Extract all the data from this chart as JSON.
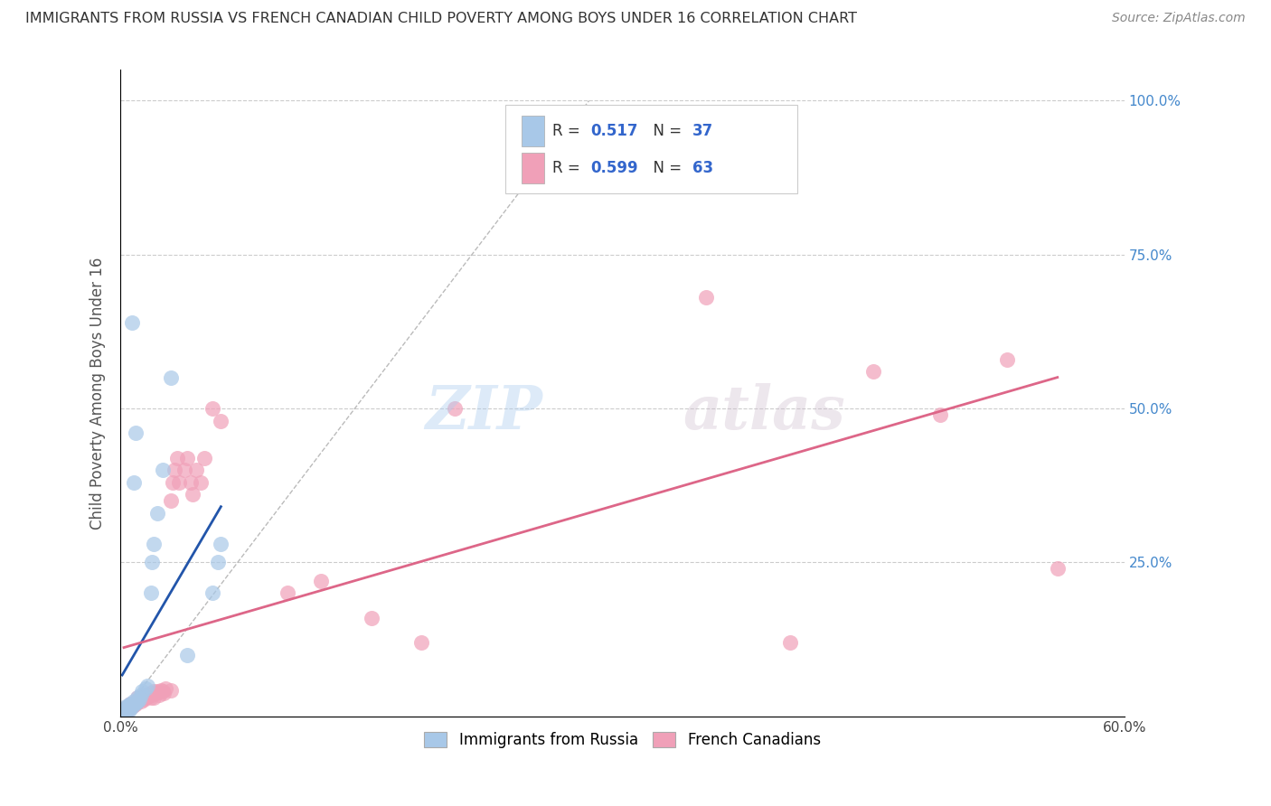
{
  "title": "IMMIGRANTS FROM RUSSIA VS FRENCH CANADIAN CHILD POVERTY AMONG BOYS UNDER 16 CORRELATION CHART",
  "source": "Source: ZipAtlas.com",
  "ylabel": "Child Poverty Among Boys Under 16",
  "xlim": [
    0.0,
    0.6
  ],
  "ylim": [
    0.0,
    1.05
  ],
  "yticks": [
    0.0,
    0.25,
    0.5,
    0.75,
    1.0
  ],
  "ytick_labels_right": [
    "",
    "25.0%",
    "50.0%",
    "75.0%",
    "100.0%"
  ],
  "xticks": [
    0.0,
    0.075,
    0.15,
    0.225,
    0.3,
    0.375,
    0.45,
    0.525,
    0.6
  ],
  "xtick_labels": [
    "0.0%",
    "",
    "",
    "",
    "",
    "",
    "",
    "",
    "60.0%"
  ],
  "legend_labels": [
    "Immigrants from Russia",
    "French Canadians"
  ],
  "R_blue": 0.517,
  "N_blue": 37,
  "R_pink": 0.599,
  "N_pink": 63,
  "blue_color": "#A8C8E8",
  "pink_color": "#F0A0B8",
  "blue_line_color": "#2255AA",
  "pink_line_color": "#DD6688",
  "blue_scatter": [
    [
      0.001,
      0.005
    ],
    [
      0.002,
      0.008
    ],
    [
      0.002,
      0.01
    ],
    [
      0.003,
      0.012
    ],
    [
      0.003,
      0.015
    ],
    [
      0.004,
      0.01
    ],
    [
      0.004,
      0.015
    ],
    [
      0.005,
      0.01
    ],
    [
      0.005,
      0.012
    ],
    [
      0.005,
      0.018
    ],
    [
      0.006,
      0.015
    ],
    [
      0.006,
      0.02
    ],
    [
      0.007,
      0.015
    ],
    [
      0.007,
      0.018
    ],
    [
      0.008,
      0.02
    ],
    [
      0.008,
      0.025
    ],
    [
      0.009,
      0.022
    ],
    [
      0.01,
      0.025
    ],
    [
      0.01,
      0.03
    ],
    [
      0.011,
      0.028
    ],
    [
      0.012,
      0.035
    ],
    [
      0.013,
      0.04
    ],
    [
      0.015,
      0.045
    ],
    [
      0.016,
      0.05
    ],
    [
      0.018,
      0.2
    ],
    [
      0.019,
      0.25
    ],
    [
      0.02,
      0.28
    ],
    [
      0.022,
      0.33
    ],
    [
      0.025,
      0.4
    ],
    [
      0.008,
      0.38
    ],
    [
      0.009,
      0.46
    ],
    [
      0.007,
      0.64
    ],
    [
      0.03,
      0.55
    ],
    [
      0.055,
      0.2
    ],
    [
      0.058,
      0.25
    ],
    [
      0.06,
      0.28
    ],
    [
      0.04,
      0.1
    ]
  ],
  "pink_scatter": [
    [
      0.002,
      0.005
    ],
    [
      0.003,
      0.008
    ],
    [
      0.003,
      0.012
    ],
    [
      0.004,
      0.01
    ],
    [
      0.004,
      0.015
    ],
    [
      0.005,
      0.012
    ],
    [
      0.005,
      0.015
    ],
    [
      0.006,
      0.018
    ],
    [
      0.006,
      0.02
    ],
    [
      0.007,
      0.015
    ],
    [
      0.007,
      0.02
    ],
    [
      0.008,
      0.018
    ],
    [
      0.008,
      0.022
    ],
    [
      0.009,
      0.02
    ],
    [
      0.01,
      0.025
    ],
    [
      0.01,
      0.03
    ],
    [
      0.011,
      0.028
    ],
    [
      0.012,
      0.025
    ],
    [
      0.012,
      0.03
    ],
    [
      0.013,
      0.032
    ],
    [
      0.014,
      0.028
    ],
    [
      0.015,
      0.03
    ],
    [
      0.015,
      0.035
    ],
    [
      0.016,
      0.032
    ],
    [
      0.017,
      0.035
    ],
    [
      0.018,
      0.03
    ],
    [
      0.018,
      0.038
    ],
    [
      0.019,
      0.035
    ],
    [
      0.02,
      0.04
    ],
    [
      0.02,
      0.03
    ],
    [
      0.021,
      0.038
    ],
    [
      0.022,
      0.04
    ],
    [
      0.023,
      0.035
    ],
    [
      0.024,
      0.042
    ],
    [
      0.025,
      0.04
    ],
    [
      0.026,
      0.038
    ],
    [
      0.027,
      0.045
    ],
    [
      0.03,
      0.042
    ],
    [
      0.03,
      0.35
    ],
    [
      0.031,
      0.38
    ],
    [
      0.032,
      0.4
    ],
    [
      0.034,
      0.42
    ],
    [
      0.035,
      0.38
    ],
    [
      0.038,
      0.4
    ],
    [
      0.04,
      0.42
    ],
    [
      0.042,
      0.38
    ],
    [
      0.043,
      0.36
    ],
    [
      0.045,
      0.4
    ],
    [
      0.048,
      0.38
    ],
    [
      0.05,
      0.42
    ],
    [
      0.055,
      0.5
    ],
    [
      0.06,
      0.48
    ],
    [
      0.1,
      0.2
    ],
    [
      0.12,
      0.22
    ],
    [
      0.15,
      0.16
    ],
    [
      0.18,
      0.12
    ],
    [
      0.2,
      0.5
    ],
    [
      0.35,
      0.68
    ],
    [
      0.4,
      0.12
    ],
    [
      0.45,
      0.56
    ],
    [
      0.49,
      0.49
    ],
    [
      0.53,
      0.58
    ],
    [
      0.56,
      0.24
    ]
  ]
}
